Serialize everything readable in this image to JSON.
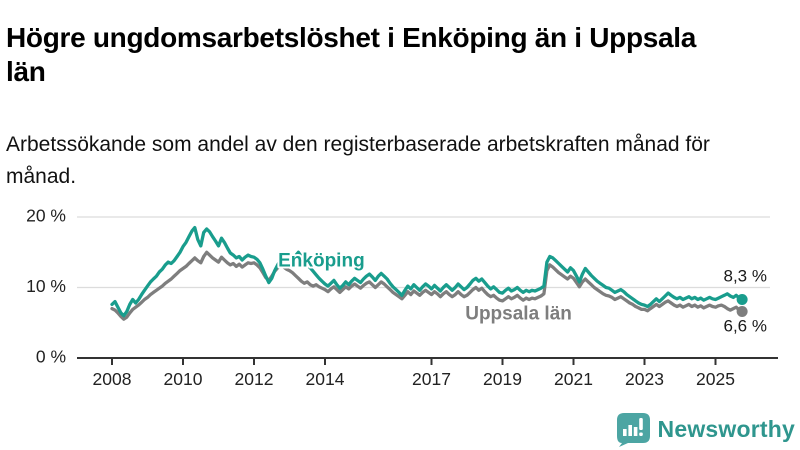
{
  "header": {
    "title": "Högre ungdomsarbetslöshet i Enköping än i Uppsala län",
    "subtitle": "Arbetssökande som andel av den registerbaserade arbetskraften månad för månad."
  },
  "chart_data": {
    "type": "line",
    "title": "",
    "xlabel": "",
    "ylabel": "",
    "x_start_year": 2008,
    "points_per_year": 12,
    "ylim": [
      0,
      20
    ],
    "grid": "horizontal",
    "legend_position": "inline-labels",
    "yticks": [
      {
        "value": 0,
        "label": "0 %"
      },
      {
        "value": 10,
        "label": "10 %"
      },
      {
        "value": 20,
        "label": "20 %"
      }
    ],
    "xticks": [
      {
        "value": 2008,
        "label": "2008"
      },
      {
        "value": 2010,
        "label": "2010"
      },
      {
        "value": 2012,
        "label": "2012"
      },
      {
        "value": 2014,
        "label": "2014"
      },
      {
        "value": 2017,
        "label": "2017"
      },
      {
        "value": 2019,
        "label": "2019"
      },
      {
        "value": 2021,
        "label": "2021"
      },
      {
        "value": 2023,
        "label": "2023"
      },
      {
        "value": 2025,
        "label": "2025"
      }
    ],
    "series": [
      {
        "name": "Enköping",
        "color": "#199D8D",
        "end_label": "8,3 %",
        "end_value": 8.3,
        "values": [
          7.6,
          8.0,
          7.2,
          6.4,
          6.0,
          6.6,
          7.6,
          8.3,
          7.8,
          8.3,
          9.0,
          9.6,
          10.2,
          10.8,
          11.2,
          11.6,
          12.2,
          12.6,
          13.2,
          13.6,
          13.4,
          13.8,
          14.4,
          15.0,
          15.8,
          16.4,
          17.2,
          18.0,
          18.5,
          16.8,
          15.9,
          17.8,
          18.3,
          17.9,
          17.2,
          16.6,
          15.9,
          17.0,
          16.4,
          15.6,
          14.9,
          14.6,
          14.2,
          14.4,
          13.9,
          14.3,
          14.6,
          14.4,
          14.3,
          14.0,
          13.5,
          12.6,
          11.6,
          10.7,
          11.3,
          12.4,
          13.2,
          13.9,
          14.2,
          14.0,
          13.8,
          14.2,
          14.5,
          15.0,
          14.4,
          13.8,
          13.2,
          12.8,
          12.3,
          11.8,
          11.3,
          10.9,
          10.5,
          10.2,
          10.6,
          11.0,
          10.4,
          9.9,
          10.3,
          10.8,
          10.4,
          10.9,
          11.3,
          11.0,
          10.7,
          11.2,
          11.6,
          11.9,
          11.5,
          11.0,
          11.6,
          12.0,
          11.6,
          11.2,
          10.6,
          10.1,
          9.7,
          9.3,
          8.9,
          9.6,
          10.2,
          9.8,
          10.4,
          10.0,
          9.6,
          10.1,
          10.5,
          10.2,
          9.8,
          10.3,
          9.9,
          9.5,
          10.0,
          10.4,
          10.0,
          9.6,
          10.0,
          10.5,
          10.1,
          9.7,
          10.0,
          10.5,
          11.0,
          11.3,
          10.9,
          11.2,
          10.7,
          10.2,
          9.8,
          10.1,
          9.7,
          9.3,
          9.2,
          9.6,
          9.9,
          9.5,
          9.7,
          10.0,
          9.6,
          9.3,
          9.6,
          9.4,
          9.6,
          9.5,
          9.7,
          9.9,
          10.2,
          13.6,
          14.4,
          14.2,
          13.8,
          13.4,
          13.0,
          12.6,
          12.2,
          12.8,
          12.4,
          11.6,
          10.8,
          11.9,
          12.7,
          12.2,
          11.7,
          11.3,
          10.9,
          10.6,
          10.3,
          10.0,
          9.9,
          9.6,
          9.3,
          9.5,
          9.7,
          9.4,
          9.0,
          8.7,
          8.4,
          8.1,
          7.8,
          7.6,
          7.5,
          7.3,
          7.6,
          8.0,
          8.4,
          8.0,
          8.4,
          8.8,
          9.2,
          8.9,
          8.6,
          8.4,
          8.6,
          8.3,
          8.5,
          8.7,
          8.4,
          8.6,
          8.3,
          8.5,
          8.2,
          8.4,
          8.6,
          8.4,
          8.3,
          8.5,
          8.7,
          8.9,
          9.1,
          8.8,
          8.6,
          8.9,
          8.5,
          8.3
        ]
      },
      {
        "name": "Uppsala län",
        "color": "#7E7E7E",
        "end_label": "6,6 %",
        "end_value": 6.6,
        "values": [
          7.0,
          6.8,
          6.4,
          5.9,
          5.5,
          5.8,
          6.4,
          6.9,
          7.2,
          7.5,
          7.9,
          8.3,
          8.6,
          9.0,
          9.3,
          9.6,
          9.9,
          10.2,
          10.6,
          10.9,
          11.2,
          11.6,
          12.0,
          12.4,
          12.7,
          13.0,
          13.4,
          13.8,
          14.2,
          13.8,
          13.5,
          14.4,
          15.0,
          14.6,
          14.2,
          13.9,
          13.6,
          14.3,
          13.9,
          13.5,
          13.2,
          13.4,
          13.0,
          13.3,
          12.9,
          13.2,
          13.5,
          13.4,
          13.5,
          13.2,
          12.8,
          12.1,
          11.4,
          11.0,
          11.6,
          12.3,
          12.8,
          13.1,
          12.9,
          12.6,
          12.4,
          12.1,
          11.7,
          11.3,
          10.9,
          10.6,
          10.8,
          10.4,
          10.2,
          10.4,
          10.1,
          9.9,
          9.7,
          9.4,
          9.8,
          10.1,
          9.7,
          9.3,
          9.7,
          10.1,
          9.8,
          10.2,
          10.5,
          10.2,
          9.9,
          10.3,
          10.6,
          10.8,
          10.4,
          10.0,
          10.4,
          10.8,
          10.5,
          10.1,
          9.7,
          9.3,
          9.0,
          8.7,
          8.4,
          8.9,
          9.4,
          9.0,
          9.5,
          9.2,
          8.9,
          9.3,
          9.6,
          9.3,
          9.0,
          9.4,
          9.1,
          8.7,
          9.1,
          9.4,
          9.0,
          8.7,
          9.0,
          9.4,
          9.0,
          8.7,
          8.9,
          9.3,
          9.7,
          10.0,
          9.6,
          9.9,
          9.4,
          9.0,
          8.7,
          8.9,
          8.5,
          8.2,
          8.1,
          8.4,
          8.7,
          8.4,
          8.6,
          8.9,
          8.5,
          8.2,
          8.5,
          8.3,
          8.5,
          8.4,
          8.6,
          8.8,
          9.1,
          12.4,
          13.2,
          12.9,
          12.5,
          12.1,
          11.8,
          11.5,
          11.2,
          11.6,
          11.3,
          10.7,
          10.1,
          10.8,
          11.2,
          10.8,
          10.4,
          10.0,
          9.7,
          9.4,
          9.1,
          8.9,
          8.8,
          8.6,
          8.3,
          8.5,
          8.7,
          8.4,
          8.1,
          7.8,
          7.6,
          7.3,
          7.1,
          6.9,
          6.9,
          6.7,
          7.0,
          7.3,
          7.6,
          7.3,
          7.6,
          7.9,
          8.1,
          7.8,
          7.5,
          7.3,
          7.5,
          7.2,
          7.4,
          7.6,
          7.3,
          7.5,
          7.2,
          7.4,
          7.1,
          7.3,
          7.5,
          7.3,
          7.2,
          7.4,
          7.5,
          7.3,
          7.0,
          6.8,
          7.0,
          7.2,
          6.8,
          6.6
        ]
      }
    ],
    "annotations": [
      {
        "text": "Enköping",
        "x": 2012.68,
        "y": 13.7,
        "anchor": "start",
        "color": "#199D8D",
        "bold": true,
        "size": 19
      },
      {
        "text": "Uppsala län",
        "x": 2017.95,
        "y": 6.15,
        "anchor": "start",
        "color": "#7E7E7E",
        "bold": true,
        "size": 19
      },
      {
        "text": "8,3 %",
        "x": 2026.45,
        "y": 11.5,
        "anchor": "end",
        "color": "#1a1a1a",
        "bold": false,
        "size": 17
      },
      {
        "text": "6,6 %",
        "x": 2026.45,
        "y": 4.4,
        "anchor": "end",
        "color": "#1a1a1a",
        "bold": false,
        "size": 17
      }
    ]
  },
  "footer": {
    "brand": "Newsworthy"
  },
  "colors": {
    "accent_teal": "#199D8D",
    "series_gray": "#7E7E7E",
    "logo_teal": "#4CA5A3",
    "wordmark_teal": "#2F968E",
    "grid": "#DCDCDC",
    "axis": "#333333"
  }
}
